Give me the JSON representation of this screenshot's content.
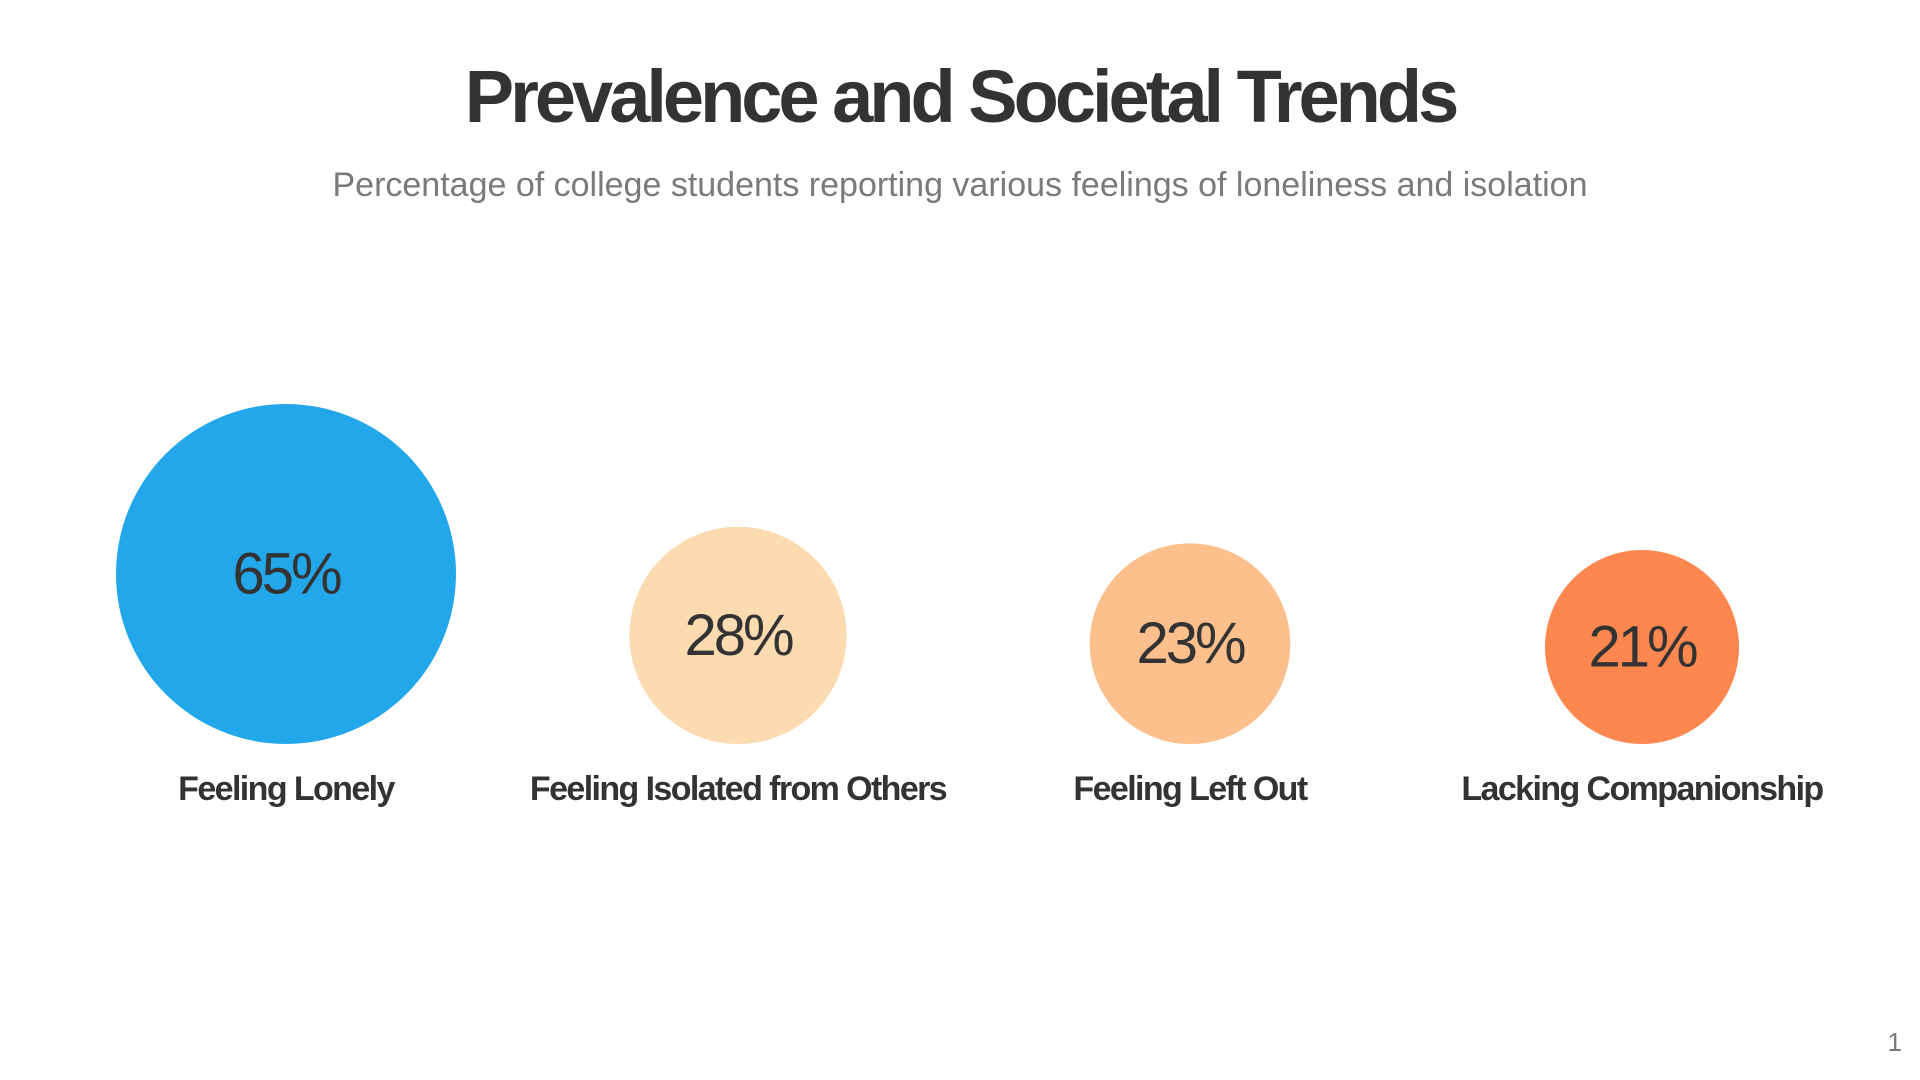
{
  "slide": {
    "title": "Prevalence and Societal Trends",
    "subtitle": "Percentage of college students reporting various feelings of loneliness and isolation",
    "page_number": "1"
  },
  "chart_data": {
    "type": "bubble",
    "unit": "%",
    "categories": [
      "Feeling Lonely",
      "Feeling Isolated from Others",
      "Feeling Left Out",
      "Lacking Companionship"
    ],
    "values": [
      65,
      28,
      23,
      21
    ],
    "value_labels": [
      "65%",
      "28%",
      "23%",
      "21%"
    ],
    "colors": [
      "#22a8ea",
      "#fddbb1",
      "#fdc08c",
      "#fd874e"
    ]
  }
}
